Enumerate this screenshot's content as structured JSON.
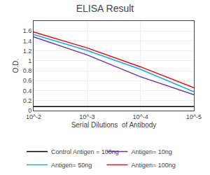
{
  "chart_data": {
    "type": "line",
    "title": "ELISA Result",
    "xlabel": "Serial Dilutions  of Antibody",
    "ylabel": "O.D.",
    "x": [
      0.01,
      0.001,
      0.0001,
      1e-05
    ],
    "series": [
      {
        "name": "Control Antigen = 100ng",
        "color": "#000000",
        "values": [
          0.08,
          0.08,
          0.08,
          0.08
        ]
      },
      {
        "name": "Antigen= 10ng",
        "color": "#7030a0",
        "values": [
          1.48,
          1.12,
          0.68,
          0.32
        ]
      },
      {
        "name": "Antigen= 50ng",
        "color": "#00b0f0",
        "values": [
          1.53,
          1.21,
          0.83,
          0.38
        ]
      },
      {
        "name": "Antigen= 100ng",
        "color": "#ff0000",
        "values": [
          1.58,
          1.26,
          0.88,
          0.46
        ]
      }
    ],
    "log": "x",
    "xlim": [
      0.01,
      1e-05
    ],
    "xticks": [
      {
        "value": 0.01,
        "label": "10^-2"
      },
      {
        "value": 0.001,
        "label": "10^-3"
      },
      {
        "value": 0.0001,
        "label": "10^-4"
      },
      {
        "value": 1e-05,
        "label": "10^-5"
      }
    ],
    "ylim": [
      0,
      1.8
    ],
    "yticks": [
      0,
      0.2,
      0.4,
      0.6,
      0.8,
      1.0,
      1.2,
      1.4,
      1.6
    ],
    "grid": true,
    "legend": "bottom"
  }
}
